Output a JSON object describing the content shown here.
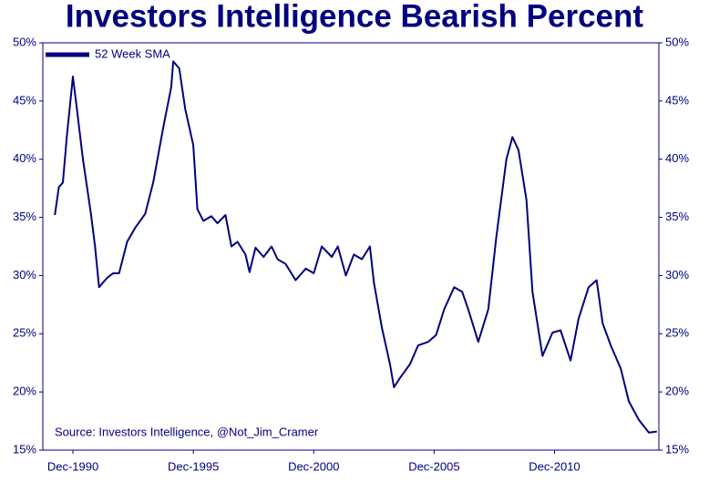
{
  "chart_data": {
    "type": "line",
    "title": "Investors Intelligence Bearish Percent",
    "annotation": "Source: Investors Intelligence, @Not_Jim_Cramer",
    "legend": "upper left",
    "grid": false,
    "x": [
      "1990-03",
      "1990-05",
      "1990-07",
      "1990-09",
      "1990-12",
      "1991-02",
      "1991-05",
      "1991-09",
      "1991-11",
      "1992-01",
      "1992-05",
      "1992-08",
      "1992-11",
      "1993-03",
      "1993-07",
      "1993-12",
      "1994-04",
      "1994-09",
      "1995-01",
      "1995-02",
      "1995-05",
      "1995-08",
      "1995-12",
      "1996-02",
      "1996-05",
      "1996-09",
      "1996-12",
      "1997-04",
      "1997-07",
      "1997-10",
      "1998-02",
      "1998-04",
      "1998-07",
      "1998-11",
      "1999-03",
      "1999-06",
      "1999-10",
      "2000-03",
      "2000-08",
      "2000-12",
      "2001-04",
      "2001-09",
      "2001-12",
      "2002-04",
      "2002-08",
      "2002-12",
      "2003-04",
      "2003-06",
      "2003-10",
      "2004-02",
      "2004-04",
      "2004-07",
      "2004-12",
      "2005-04",
      "2005-09",
      "2006-01",
      "2006-05",
      "2006-10",
      "2007-02",
      "2007-05",
      "2007-10",
      "2008-03",
      "2008-07",
      "2008-12",
      "2009-03",
      "2009-06",
      "2009-10",
      "2010-01",
      "2010-06",
      "2010-11",
      "2011-03",
      "2011-08",
      "2011-12",
      "2012-05",
      "2012-09",
      "2012-12",
      "2013-04",
      "2013-09",
      "2014-01",
      "2014-06",
      "2014-11",
      "2015-03"
    ],
    "series": [
      {
        "name": "52 Week SMA",
        "color": "#000080",
        "values": [
          35.2,
          37.6,
          38.0,
          42.0,
          47.1,
          44.3,
          40.0,
          35.3,
          32.5,
          29.0,
          29.8,
          30.2,
          30.2,
          32.9,
          34.1,
          35.3,
          38.0,
          42.7,
          46.2,
          48.4,
          47.8,
          44.3,
          41.2,
          35.7,
          34.7,
          35.1,
          34.5,
          35.2,
          32.5,
          32.9,
          31.8,
          30.3,
          32.4,
          31.6,
          32.5,
          31.4,
          31.0,
          29.6,
          30.6,
          30.2,
          32.5,
          31.6,
          32.5,
          30.0,
          31.8,
          31.4,
          32.5,
          29.4,
          25.5,
          22.4,
          20.4,
          21.2,
          22.4,
          24.0,
          24.3,
          24.9,
          27.1,
          29.0,
          28.6,
          27.1,
          24.3,
          27.1,
          33.3,
          40.0,
          41.9,
          40.8,
          36.5,
          28.6,
          23.1,
          25.1,
          25.3,
          22.7,
          26.3,
          29.0,
          29.6,
          25.9,
          24.0,
          22.0,
          19.2,
          17.6,
          16.5,
          16.6
        ]
      }
    ],
    "xlim": [
      "1989-09",
      "2015-04"
    ],
    "xticks": [
      {
        "value": "1990-12",
        "label": "Dec-1990"
      },
      {
        "value": "1995-12",
        "label": "Dec-1995"
      },
      {
        "value": "2000-12",
        "label": "Dec-2000"
      },
      {
        "value": "2005-12",
        "label": "Dec-2005"
      },
      {
        "value": "2010-12",
        "label": "Dec-2010"
      }
    ],
    "ylim": [
      15,
      50
    ],
    "yticks": [
      {
        "value": 15,
        "label": "15%"
      },
      {
        "value": 20,
        "label": "20%"
      },
      {
        "value": 25,
        "label": "25%"
      },
      {
        "value": 30,
        "label": "30%"
      },
      {
        "value": 35,
        "label": "35%"
      },
      {
        "value": 40,
        "label": "40%"
      },
      {
        "value": 45,
        "label": "45%"
      },
      {
        "value": 50,
        "label": "50%"
      }
    ],
    "y2lim": [
      15,
      50
    ],
    "y2ticks": [
      {
        "value": 15,
        "label": "15%"
      },
      {
        "value": 20,
        "label": "20%"
      },
      {
        "value": 25,
        "label": "25%"
      },
      {
        "value": 30,
        "label": "30%"
      },
      {
        "value": 35,
        "label": "35%"
      },
      {
        "value": 40,
        "label": "40%"
      },
      {
        "value": 45,
        "label": "45%"
      },
      {
        "value": 50,
        "label": "50%"
      }
    ]
  }
}
